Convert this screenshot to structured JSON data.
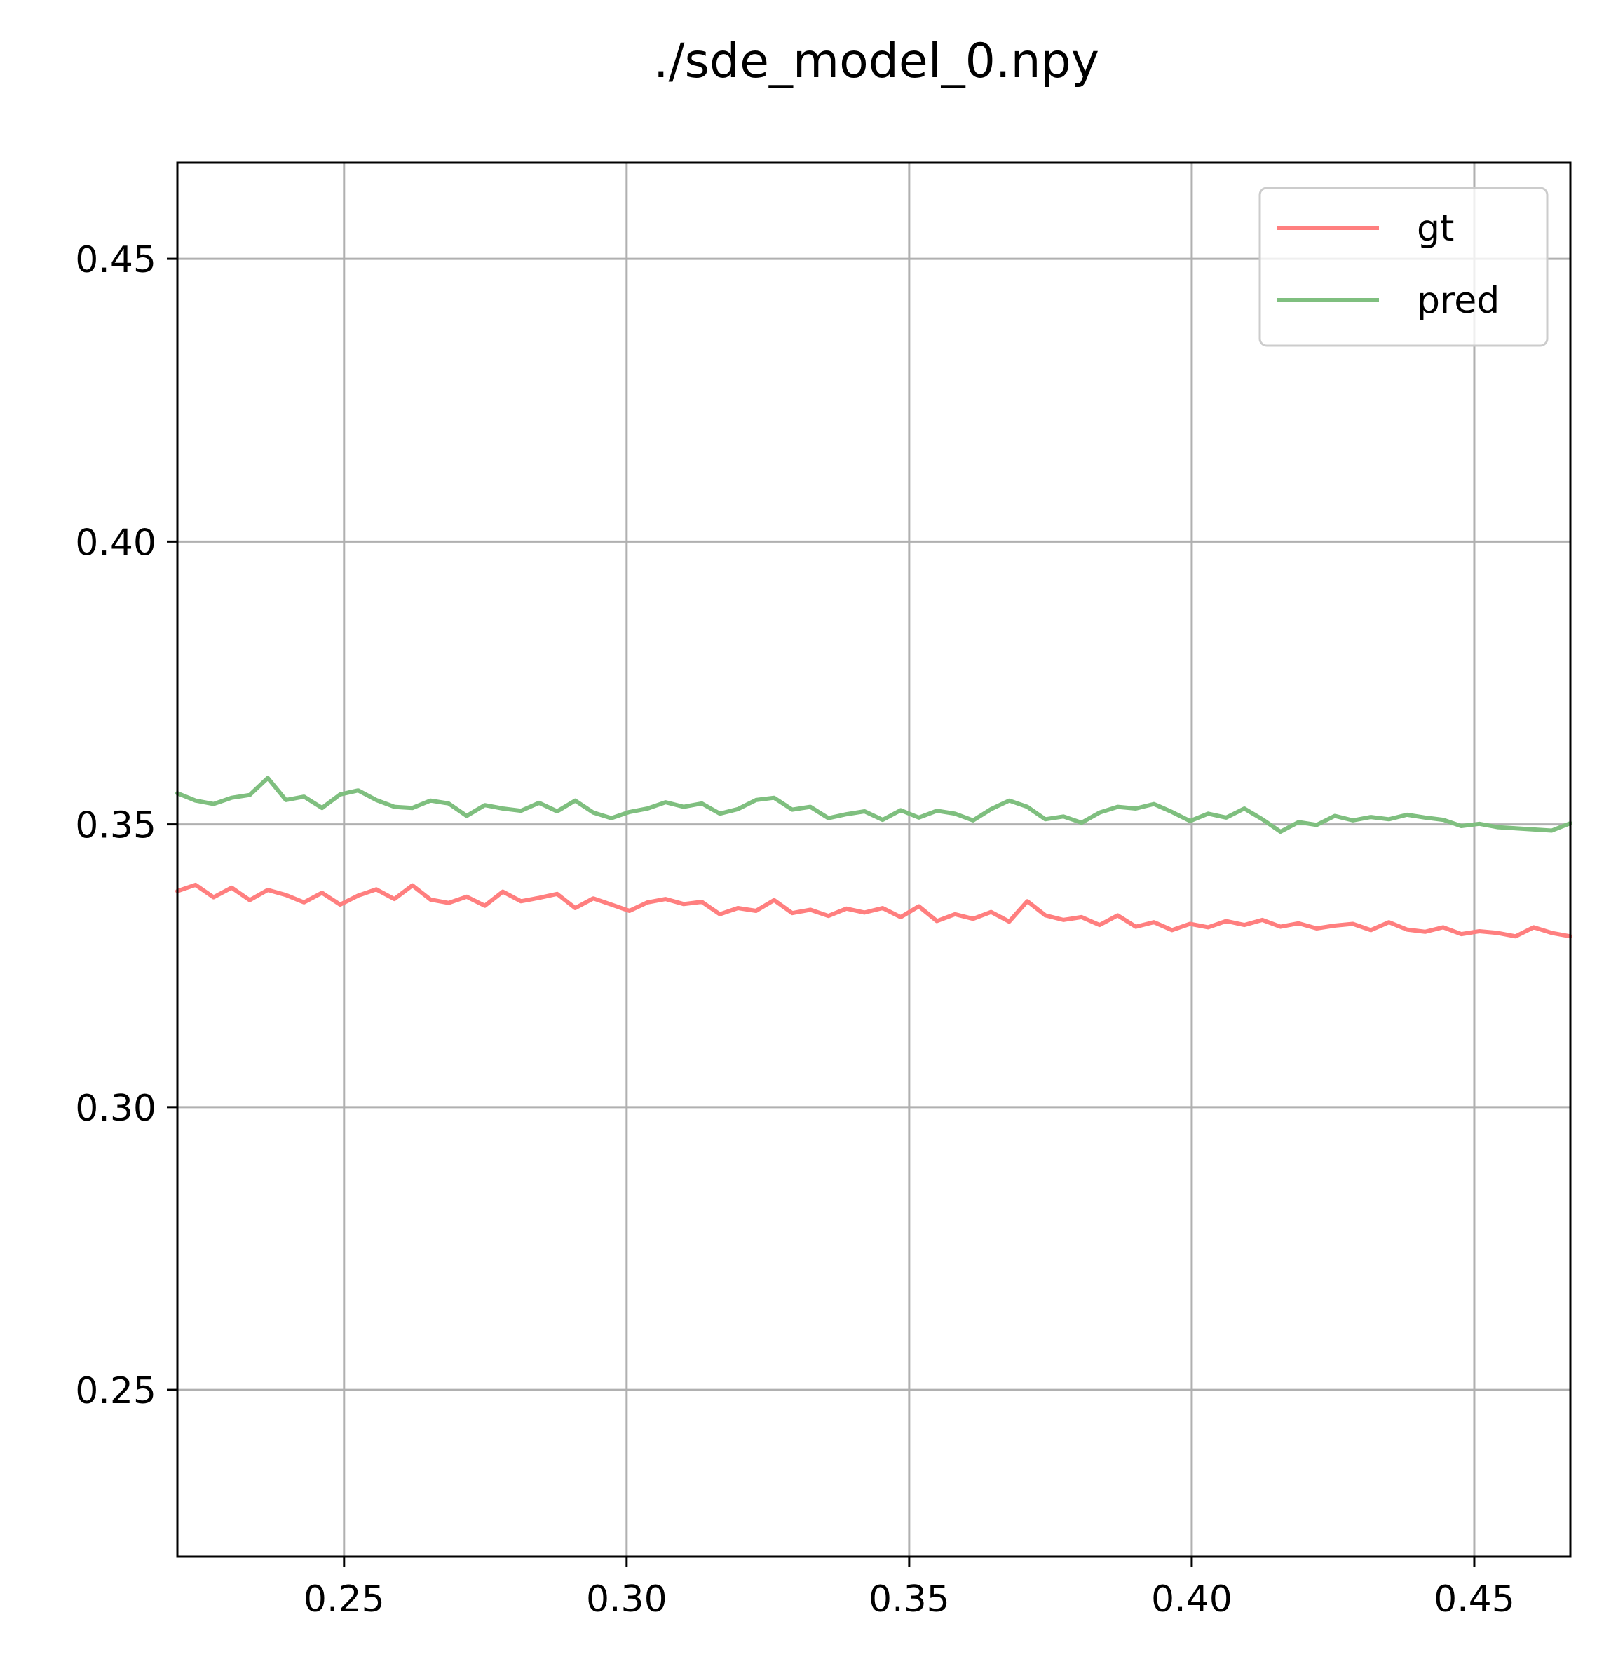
{
  "chart_data": {
    "type": "line",
    "title": "./sde_model_0.npy",
    "xlabel": "",
    "ylabel": "",
    "xlim": [
      0.2205,
      0.467
    ],
    "ylim": [
      0.2205,
      0.467
    ],
    "xticks": [
      "0.25",
      "0.30",
      "0.35",
      "0.40",
      "0.45"
    ],
    "yticks": [
      "0.25",
      "0.30",
      "0.35",
      "0.40",
      "0.45"
    ],
    "grid": true,
    "legend_position": "top-right",
    "x": [
      0.2205,
      0.2237,
      0.2269,
      0.2301,
      0.2333,
      0.2365,
      0.2397,
      0.2429,
      0.2461,
      0.2493,
      0.2525,
      0.2557,
      0.2589,
      0.2621,
      0.2653,
      0.2685,
      0.2717,
      0.2749,
      0.2781,
      0.2813,
      0.2845,
      0.2877,
      0.2909,
      0.2941,
      0.2973,
      0.3005,
      0.3037,
      0.3069,
      0.3101,
      0.3133,
      0.3165,
      0.3197,
      0.3229,
      0.3261,
      0.3293,
      0.3325,
      0.3357,
      0.3389,
      0.3421,
      0.3453,
      0.3485,
      0.3517,
      0.3549,
      0.3581,
      0.3613,
      0.3645,
      0.3677,
      0.3709,
      0.3741,
      0.3773,
      0.3805,
      0.3837,
      0.3869,
      0.3901,
      0.3933,
      0.3965,
      0.3997,
      0.4029,
      0.4061,
      0.4093,
      0.4125,
      0.4157,
      0.4189,
      0.4221,
      0.4253,
      0.4285,
      0.4317,
      0.4349,
      0.4381,
      0.4413,
      0.4445,
      0.4477,
      0.4509,
      0.4541,
      0.4573,
      0.4605,
      0.4637,
      0.467
    ],
    "series": [
      {
        "name": "gt",
        "color": "#ff7f7f",
        "values": [
          0.3382,
          0.3393,
          0.3371,
          0.3388,
          0.3366,
          0.3384,
          0.3375,
          0.3362,
          0.3379,
          0.3358,
          0.3374,
          0.3385,
          0.3368,
          0.3392,
          0.3367,
          0.3361,
          0.3372,
          0.3356,
          0.3381,
          0.3364,
          0.337,
          0.3377,
          0.3352,
          0.3369,
          0.3358,
          0.3347,
          0.3362,
          0.3368,
          0.3359,
          0.3363,
          0.3341,
          0.3352,
          0.3347,
          0.3366,
          0.3343,
          0.3349,
          0.3338,
          0.3351,
          0.3344,
          0.3352,
          0.3336,
          0.3355,
          0.3329,
          0.3341,
          0.3333,
          0.3345,
          0.3328,
          0.3364,
          0.3339,
          0.3331,
          0.3336,
          0.3322,
          0.3339,
          0.3319,
          0.3327,
          0.3313,
          0.3324,
          0.3318,
          0.3329,
          0.3322,
          0.3331,
          0.3319,
          0.3325,
          0.3316,
          0.3321,
          0.3324,
          0.3313,
          0.3327,
          0.3314,
          0.331,
          0.3318,
          0.3306,
          0.3311,
          0.3308,
          0.3302,
          0.3318,
          0.3308,
          0.3302
        ]
      },
      {
        "name": "pred",
        "color": "#7fbf7f",
        "values": [
          0.3555,
          0.3542,
          0.3536,
          0.3547,
          0.3552,
          0.3582,
          0.3543,
          0.3549,
          0.3529,
          0.3553,
          0.356,
          0.3543,
          0.3531,
          0.3529,
          0.3542,
          0.3537,
          0.3515,
          0.3534,
          0.3528,
          0.3524,
          0.3538,
          0.3523,
          0.3542,
          0.3521,
          0.3511,
          0.3522,
          0.3528,
          0.3539,
          0.3531,
          0.3537,
          0.3519,
          0.3527,
          0.3543,
          0.3547,
          0.3526,
          0.3531,
          0.3511,
          0.3518,
          0.3523,
          0.3508,
          0.3525,
          0.3512,
          0.3524,
          0.3519,
          0.3507,
          0.3527,
          0.3542,
          0.3531,
          0.3509,
          0.3514,
          0.3503,
          0.3521,
          0.3531,
          0.3528,
          0.3536,
          0.3522,
          0.3506,
          0.3519,
          0.3512,
          0.3528,
          0.3509,
          0.3487,
          0.3504,
          0.3499,
          0.3515,
          0.3507,
          0.3513,
          0.3509,
          0.3517,
          0.3512,
          0.3508,
          0.3497,
          0.3501,
          0.3495,
          0.3493,
          0.3491,
          0.3489,
          0.3502
        ]
      }
    ]
  }
}
